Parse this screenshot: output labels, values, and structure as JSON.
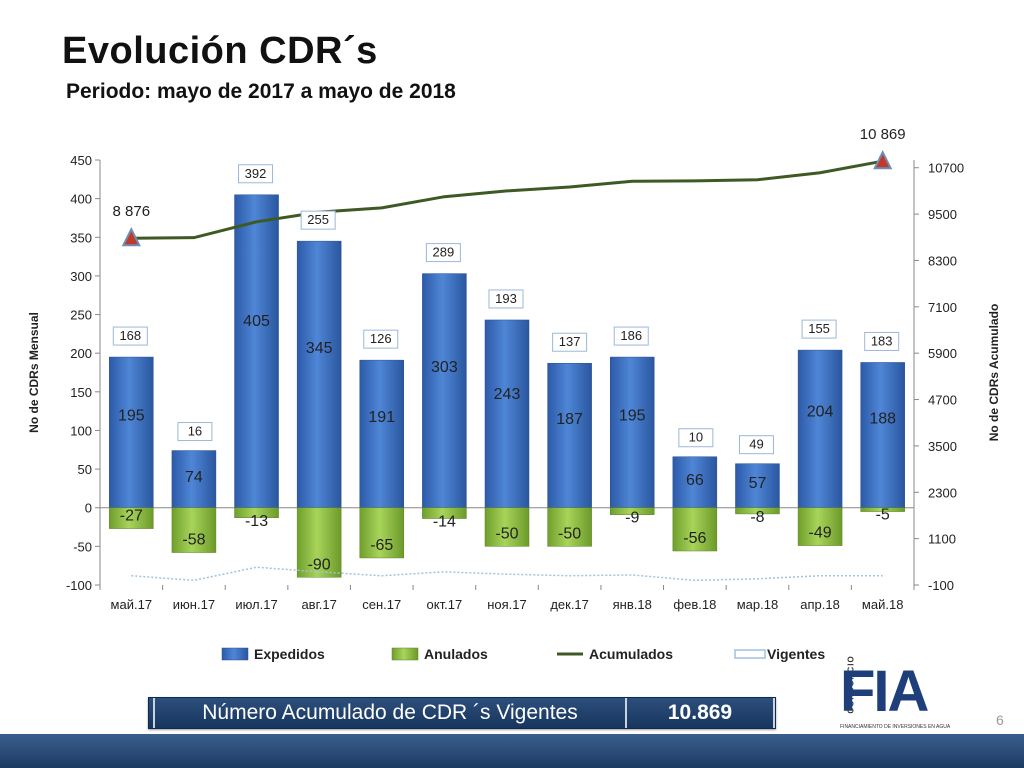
{
  "title": "Evolución CDR´s",
  "subtitle": "Periodo: mayo de 2017 a  mayo de 2018",
  "summary": {
    "label": "Número Acumulado de CDR ´s Vigentes",
    "value": "10.869"
  },
  "logo": {
    "text": "FIA",
    "side": "CONSORCIO",
    "bottom": "FINANCIAMIENTO DE INVERSIONES EN AGUA"
  },
  "page_number": "6",
  "colors": {
    "expedidos": "#3f72c0",
    "anulados": "#8fbf3f",
    "acumulados": "#3d5a24",
    "vigentes": "#9fc3e0",
    "footer": "#1f3f6b"
  },
  "chart_data": {
    "type": "bar",
    "categories": [
      "май.17",
      "июн.17",
      "июл.17",
      "авг.17",
      "сен.17",
      "окт.17",
      "ноя.17",
      "дек.17",
      "янв.18",
      "фев.18",
      "мар.18",
      "апр.18",
      "май.18"
    ],
    "series": [
      {
        "name": "Expedidos",
        "type": "bar",
        "axis": "left",
        "values": [
          195,
          74,
          405,
          345,
          191,
          303,
          243,
          187,
          195,
          66,
          57,
          204,
          188
        ]
      },
      {
        "name": "Anulados",
        "type": "bar",
        "axis": "left",
        "values": [
          -27,
          -58,
          -13,
          -90,
          -65,
          -14,
          -50,
          -50,
          -9,
          -56,
          -8,
          -49,
          -5
        ]
      },
      {
        "name": "Acumulados",
        "type": "line",
        "axis": "right",
        "values": [
          8876,
          8890,
          9300,
          9550,
          9660,
          9950,
          10100,
          10200,
          10350,
          10360,
          10390,
          10570,
          10869
        ]
      },
      {
        "name": "Vigentes",
        "type": "line",
        "axis": "left",
        "values": [
          -88,
          -94,
          -77,
          -83,
          -88,
          -83,
          -86,
          -88,
          -87,
          -94,
          -92,
          -88,
          -88
        ]
      }
    ],
    "net_labels": [
      168,
      16,
      392,
      255,
      126,
      289,
      193,
      137,
      186,
      10,
      49,
      155,
      183
    ],
    "endpoint_labels": [
      {
        "index": 0,
        "text": "8 876"
      },
      {
        "index": 12,
        "text": "10 869"
      }
    ],
    "ylabel": "No de CDRs Mensual",
    "y2label": "No de CDRs Acumulado",
    "ylim": [
      -100,
      450
    ],
    "yticks": [
      -100,
      -50,
      0,
      50,
      100,
      150,
      200,
      250,
      300,
      350,
      400,
      450
    ],
    "y2lim": [
      -100,
      10900
    ],
    "y2ticks": [
      -100,
      1100,
      2300,
      3500,
      4700,
      5900,
      7100,
      8300,
      9500,
      10700
    ],
    "grid": false,
    "legend_position": "bottom"
  }
}
